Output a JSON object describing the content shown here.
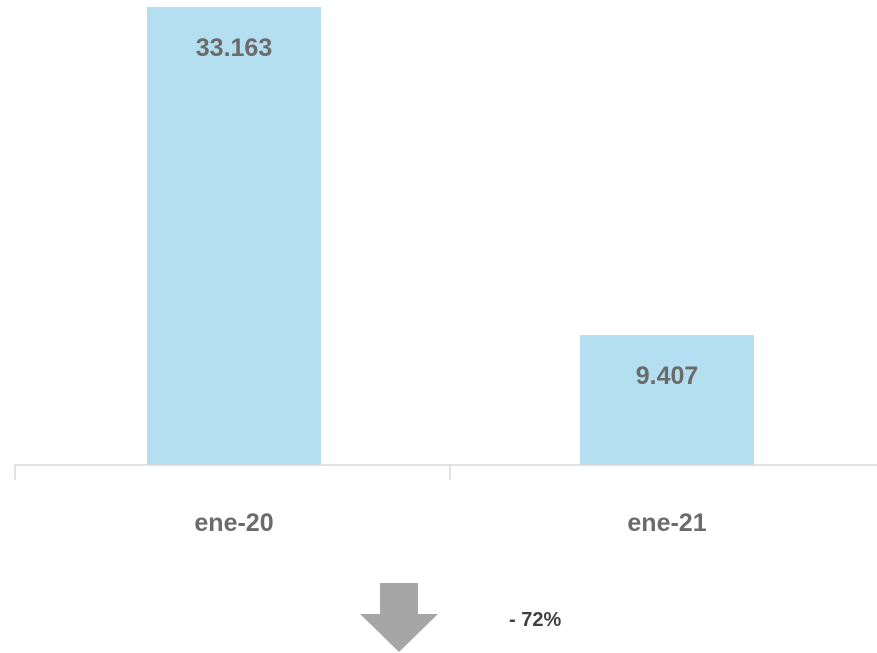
{
  "chart_data": {
    "type": "bar",
    "categories": [
      "ene-20",
      "ene-21"
    ],
    "values": [
      33163,
      9407
    ],
    "value_labels": [
      "33.163",
      "9.407"
    ],
    "bar_color": "#b4dff0",
    "label_color": "#6b6b6b",
    "axis_color": "#d9d9d9",
    "ylim": [
      0,
      33163
    ],
    "grid": false,
    "legend": "none"
  },
  "change": {
    "label": "- 72%",
    "arrow_color": "#a6a6a6",
    "direction": "down-arrow-icon"
  }
}
